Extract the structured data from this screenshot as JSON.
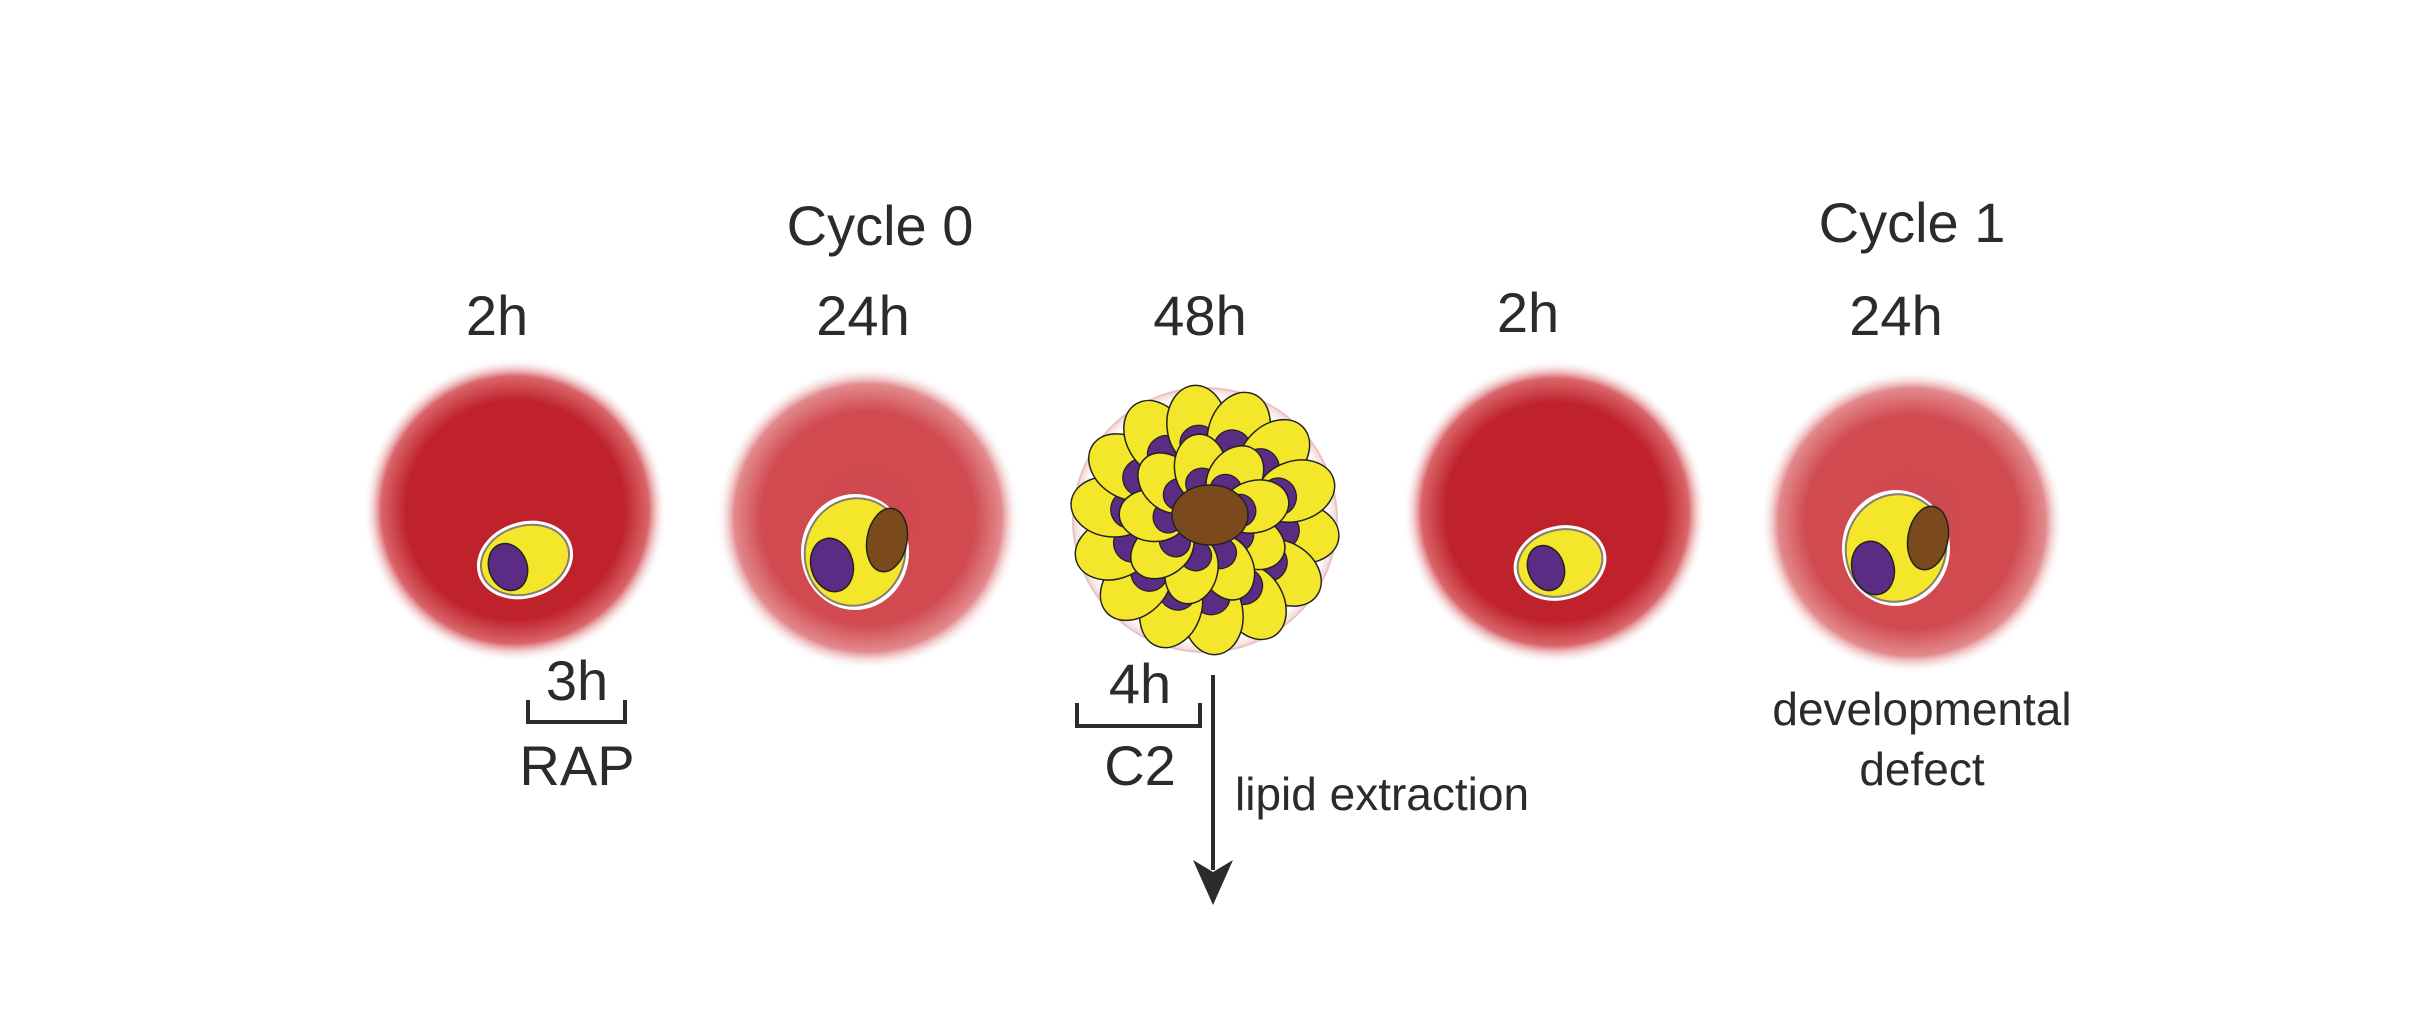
{
  "cycles": [
    {
      "label": "Cycle 0"
    },
    {
      "label": "Cycle 1"
    }
  ],
  "timepoints": [
    "2h",
    "24h",
    "48h",
    "2h",
    "24h"
  ],
  "treatments": [
    {
      "duration": "3h",
      "agent": "RAP"
    },
    {
      "duration": "4h",
      "agent": "C2"
    }
  ],
  "arrow_label": "lipid extraction",
  "outcome": [
    "developmental",
    "defect"
  ],
  "colors": {
    "rbc_dark": "#c0222b",
    "rbc_light": "#d04a50",
    "parasite": "#f4e62a",
    "nucleus": "#5b2c83",
    "food_vacuole": "#7a4a1c",
    "text": "#2b2b2b"
  }
}
